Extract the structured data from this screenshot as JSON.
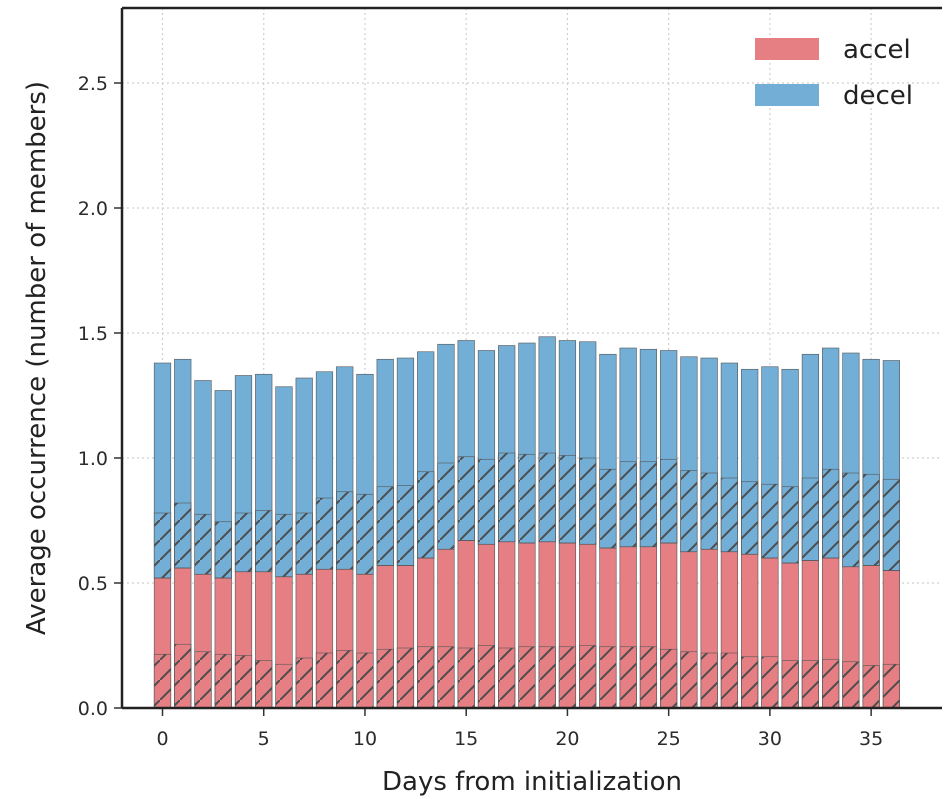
{
  "chart_data": {
    "type": "bar",
    "stacked": true,
    "x": [
      0,
      1,
      2,
      3,
      4,
      5,
      6,
      7,
      8,
      9,
      10,
      11,
      12,
      13,
      14,
      15,
      16,
      17,
      18,
      19,
      20,
      21,
      22,
      23,
      24,
      25,
      26,
      27,
      28,
      29,
      30,
      31,
      32,
      33,
      34,
      35,
      36
    ],
    "series": [
      {
        "name": "accel",
        "color": "#e57f84",
        "values": [
          0.52,
          0.56,
          0.535,
          0.52,
          0.545,
          0.545,
          0.525,
          0.535,
          0.555,
          0.555,
          0.535,
          0.57,
          0.57,
          0.6,
          0.635,
          0.67,
          0.655,
          0.665,
          0.66,
          0.665,
          0.66,
          0.655,
          0.64,
          0.645,
          0.645,
          0.66,
          0.625,
          0.635,
          0.625,
          0.615,
          0.6,
          0.58,
          0.59,
          0.6,
          0.565,
          0.57,
          0.55
        ],
        "hatched_portion": [
          0.215,
          0.255,
          0.225,
          0.215,
          0.21,
          0.19,
          0.175,
          0.2,
          0.22,
          0.23,
          0.22,
          0.235,
          0.24,
          0.245,
          0.245,
          0.24,
          0.25,
          0.24,
          0.245,
          0.245,
          0.245,
          0.25,
          0.245,
          0.245,
          0.245,
          0.235,
          0.225,
          0.22,
          0.22,
          0.205,
          0.205,
          0.19,
          0.19,
          0.195,
          0.185,
          0.17,
          0.175
        ]
      },
      {
        "name": "decel",
        "color": "#72aed6",
        "values": [
          0.86,
          0.835,
          0.775,
          0.75,
          0.785,
          0.79,
          0.76,
          0.785,
          0.79,
          0.81,
          0.8,
          0.825,
          0.83,
          0.825,
          0.82,
          0.8,
          0.775,
          0.785,
          0.8,
          0.82,
          0.81,
          0.81,
          0.775,
          0.795,
          0.79,
          0.77,
          0.78,
          0.765,
          0.755,
          0.74,
          0.765,
          0.775,
          0.825,
          0.84,
          0.855,
          0.825,
          0.84
        ],
        "hatched_portion": [
          0.26,
          0.26,
          0.24,
          0.225,
          0.235,
          0.245,
          0.25,
          0.245,
          0.285,
          0.31,
          0.32,
          0.315,
          0.32,
          0.345,
          0.345,
          0.335,
          0.34,
          0.355,
          0.355,
          0.355,
          0.35,
          0.345,
          0.315,
          0.34,
          0.34,
          0.335,
          0.325,
          0.305,
          0.295,
          0.29,
          0.295,
          0.305,
          0.33,
          0.355,
          0.375,
          0.365,
          0.365
        ]
      }
    ],
    "xlabel": "Days from initialization",
    "ylabel": "Average occurrence (number of members)",
    "xlim": [
      -2,
      38.5
    ],
    "ylim": [
      0,
      2.8
    ],
    "x_ticks": [
      "0",
      "5",
      "10",
      "15",
      "20",
      "25",
      "30",
      "35"
    ],
    "y_ticks": [
      "0.0",
      "0.5",
      "1.0",
      "1.5",
      "2.0",
      "2.5"
    ],
    "grid": true,
    "legend_position": "top-right",
    "legend": [
      "accel",
      "decel"
    ]
  }
}
